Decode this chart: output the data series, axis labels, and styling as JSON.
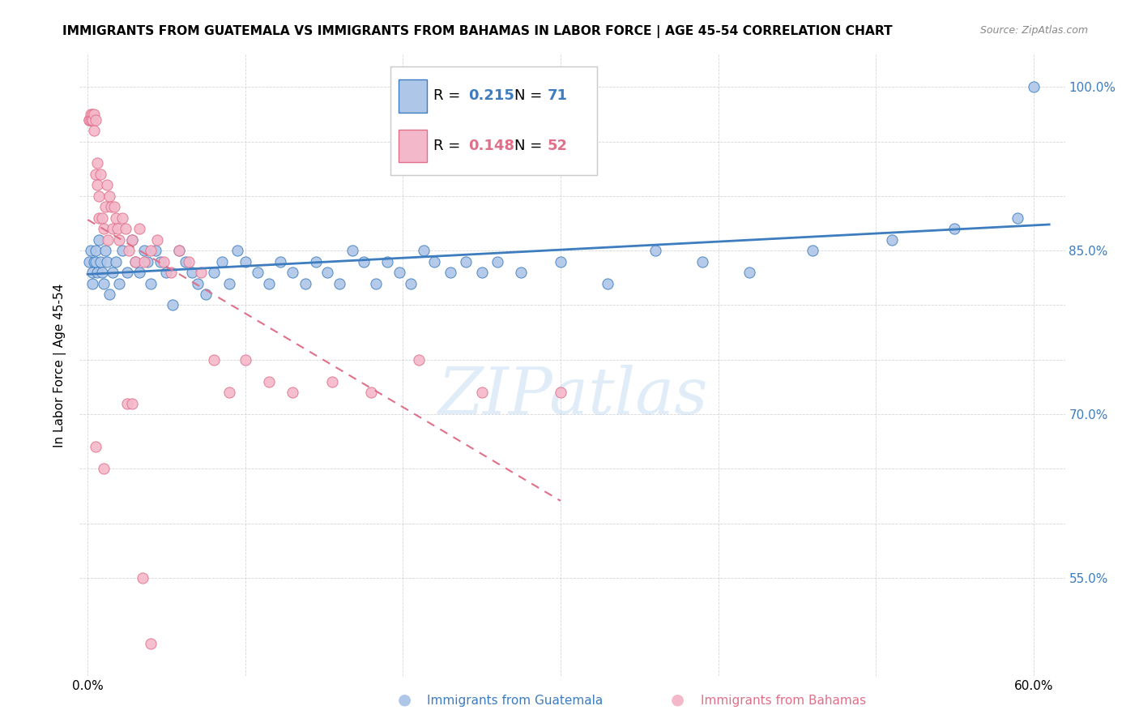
{
  "title": "IMMIGRANTS FROM GUATEMALA VS IMMIGRANTS FROM BAHAMAS IN LABOR FORCE | AGE 45-54 CORRELATION CHART",
  "source": "Source: ZipAtlas.com",
  "xlabel_label": "Immigrants from Guatemala",
  "ylabel_label": "In Labor Force | Age 45-54",
  "xlim": [
    -0.005,
    0.62
  ],
  "ylim": [
    0.46,
    1.03
  ],
  "xtick_positions": [
    0.0,
    0.1,
    0.2,
    0.3,
    0.4,
    0.5,
    0.6
  ],
  "xticklabels": [
    "0.0%",
    "",
    "",
    "",
    "",
    "",
    "60.0%"
  ],
  "ytick_positions": [
    0.55,
    0.6,
    0.65,
    0.7,
    0.75,
    0.8,
    0.85,
    0.9,
    0.95,
    1.0
  ],
  "ytick_labels_right": [
    "55.0%",
    "",
    "",
    "70.0%",
    "",
    "",
    "85.0%",
    "",
    "",
    "100.0%"
  ],
  "r_guatemala": 0.215,
  "n_guatemala": 71,
  "r_bahamas": 0.148,
  "n_bahamas": 52,
  "color_guatemala": "#aec6e8",
  "color_bahamas": "#f4b8cb",
  "trendline_guatemala_color": "#3d7dbf",
  "trendline_bahamas_color": "#e0708a",
  "watermark": "ZIPatlas",
  "guatemala_x": [
    0.001,
    0.002,
    0.003,
    0.003,
    0.004,
    0.005,
    0.005,
    0.006,
    0.007,
    0.008,
    0.009,
    0.01,
    0.011,
    0.012,
    0.014,
    0.016,
    0.018,
    0.02,
    0.022,
    0.025,
    0.028,
    0.03,
    0.033,
    0.036,
    0.038,
    0.04,
    0.043,
    0.046,
    0.05,
    0.054,
    0.058,
    0.062,
    0.066,
    0.07,
    0.075,
    0.08,
    0.085,
    0.09,
    0.095,
    0.1,
    0.108,
    0.115,
    0.122,
    0.13,
    0.138,
    0.145,
    0.152,
    0.16,
    0.168,
    0.175,
    0.183,
    0.19,
    0.198,
    0.205,
    0.213,
    0.22,
    0.23,
    0.24,
    0.25,
    0.26,
    0.275,
    0.3,
    0.33,
    0.36,
    0.39,
    0.42,
    0.46,
    0.51,
    0.55,
    0.59,
    0.6
  ],
  "guatemala_y": [
    0.84,
    0.85,
    0.83,
    0.82,
    0.84,
    0.85,
    0.84,
    0.83,
    0.86,
    0.84,
    0.83,
    0.82,
    0.85,
    0.84,
    0.81,
    0.83,
    0.84,
    0.82,
    0.85,
    0.83,
    0.86,
    0.84,
    0.83,
    0.85,
    0.84,
    0.82,
    0.85,
    0.84,
    0.83,
    0.8,
    0.85,
    0.84,
    0.83,
    0.82,
    0.81,
    0.83,
    0.84,
    0.82,
    0.85,
    0.84,
    0.83,
    0.82,
    0.84,
    0.83,
    0.82,
    0.84,
    0.83,
    0.82,
    0.85,
    0.84,
    0.82,
    0.84,
    0.83,
    0.82,
    0.85,
    0.84,
    0.83,
    0.84,
    0.83,
    0.84,
    0.83,
    0.84,
    0.82,
    0.85,
    0.84,
    0.83,
    0.85,
    0.86,
    0.87,
    0.88,
    1.0
  ],
  "bahamas_x": [
    0.001,
    0.001,
    0.002,
    0.002,
    0.003,
    0.003,
    0.003,
    0.004,
    0.004,
    0.005,
    0.005,
    0.006,
    0.006,
    0.007,
    0.007,
    0.008,
    0.009,
    0.01,
    0.011,
    0.012,
    0.013,
    0.014,
    0.015,
    0.016,
    0.017,
    0.018,
    0.019,
    0.02,
    0.022,
    0.024,
    0.026,
    0.028,
    0.03,
    0.033,
    0.036,
    0.04,
    0.044,
    0.048,
    0.053,
    0.058,
    0.064,
    0.072,
    0.08,
    0.09,
    0.1,
    0.115,
    0.13,
    0.155,
    0.18,
    0.21,
    0.25,
    0.3
  ],
  "bahamas_y": [
    0.97,
    0.97,
    0.975,
    0.97,
    0.975,
    0.97,
    0.97,
    0.975,
    0.96,
    0.97,
    0.92,
    0.93,
    0.91,
    0.88,
    0.9,
    0.92,
    0.88,
    0.87,
    0.89,
    0.91,
    0.86,
    0.9,
    0.89,
    0.87,
    0.89,
    0.88,
    0.87,
    0.86,
    0.88,
    0.87,
    0.85,
    0.86,
    0.84,
    0.87,
    0.84,
    0.85,
    0.86,
    0.84,
    0.83,
    0.85,
    0.84,
    0.83,
    0.75,
    0.72,
    0.75,
    0.73,
    0.72,
    0.73,
    0.72,
    0.75,
    0.72,
    0.72
  ],
  "bahamas_outliers_x": [
    0.005,
    0.01,
    0.025,
    0.028,
    0.035,
    0.04
  ],
  "bahamas_outliers_y": [
    0.67,
    0.65,
    0.71,
    0.71,
    0.55,
    0.49
  ]
}
